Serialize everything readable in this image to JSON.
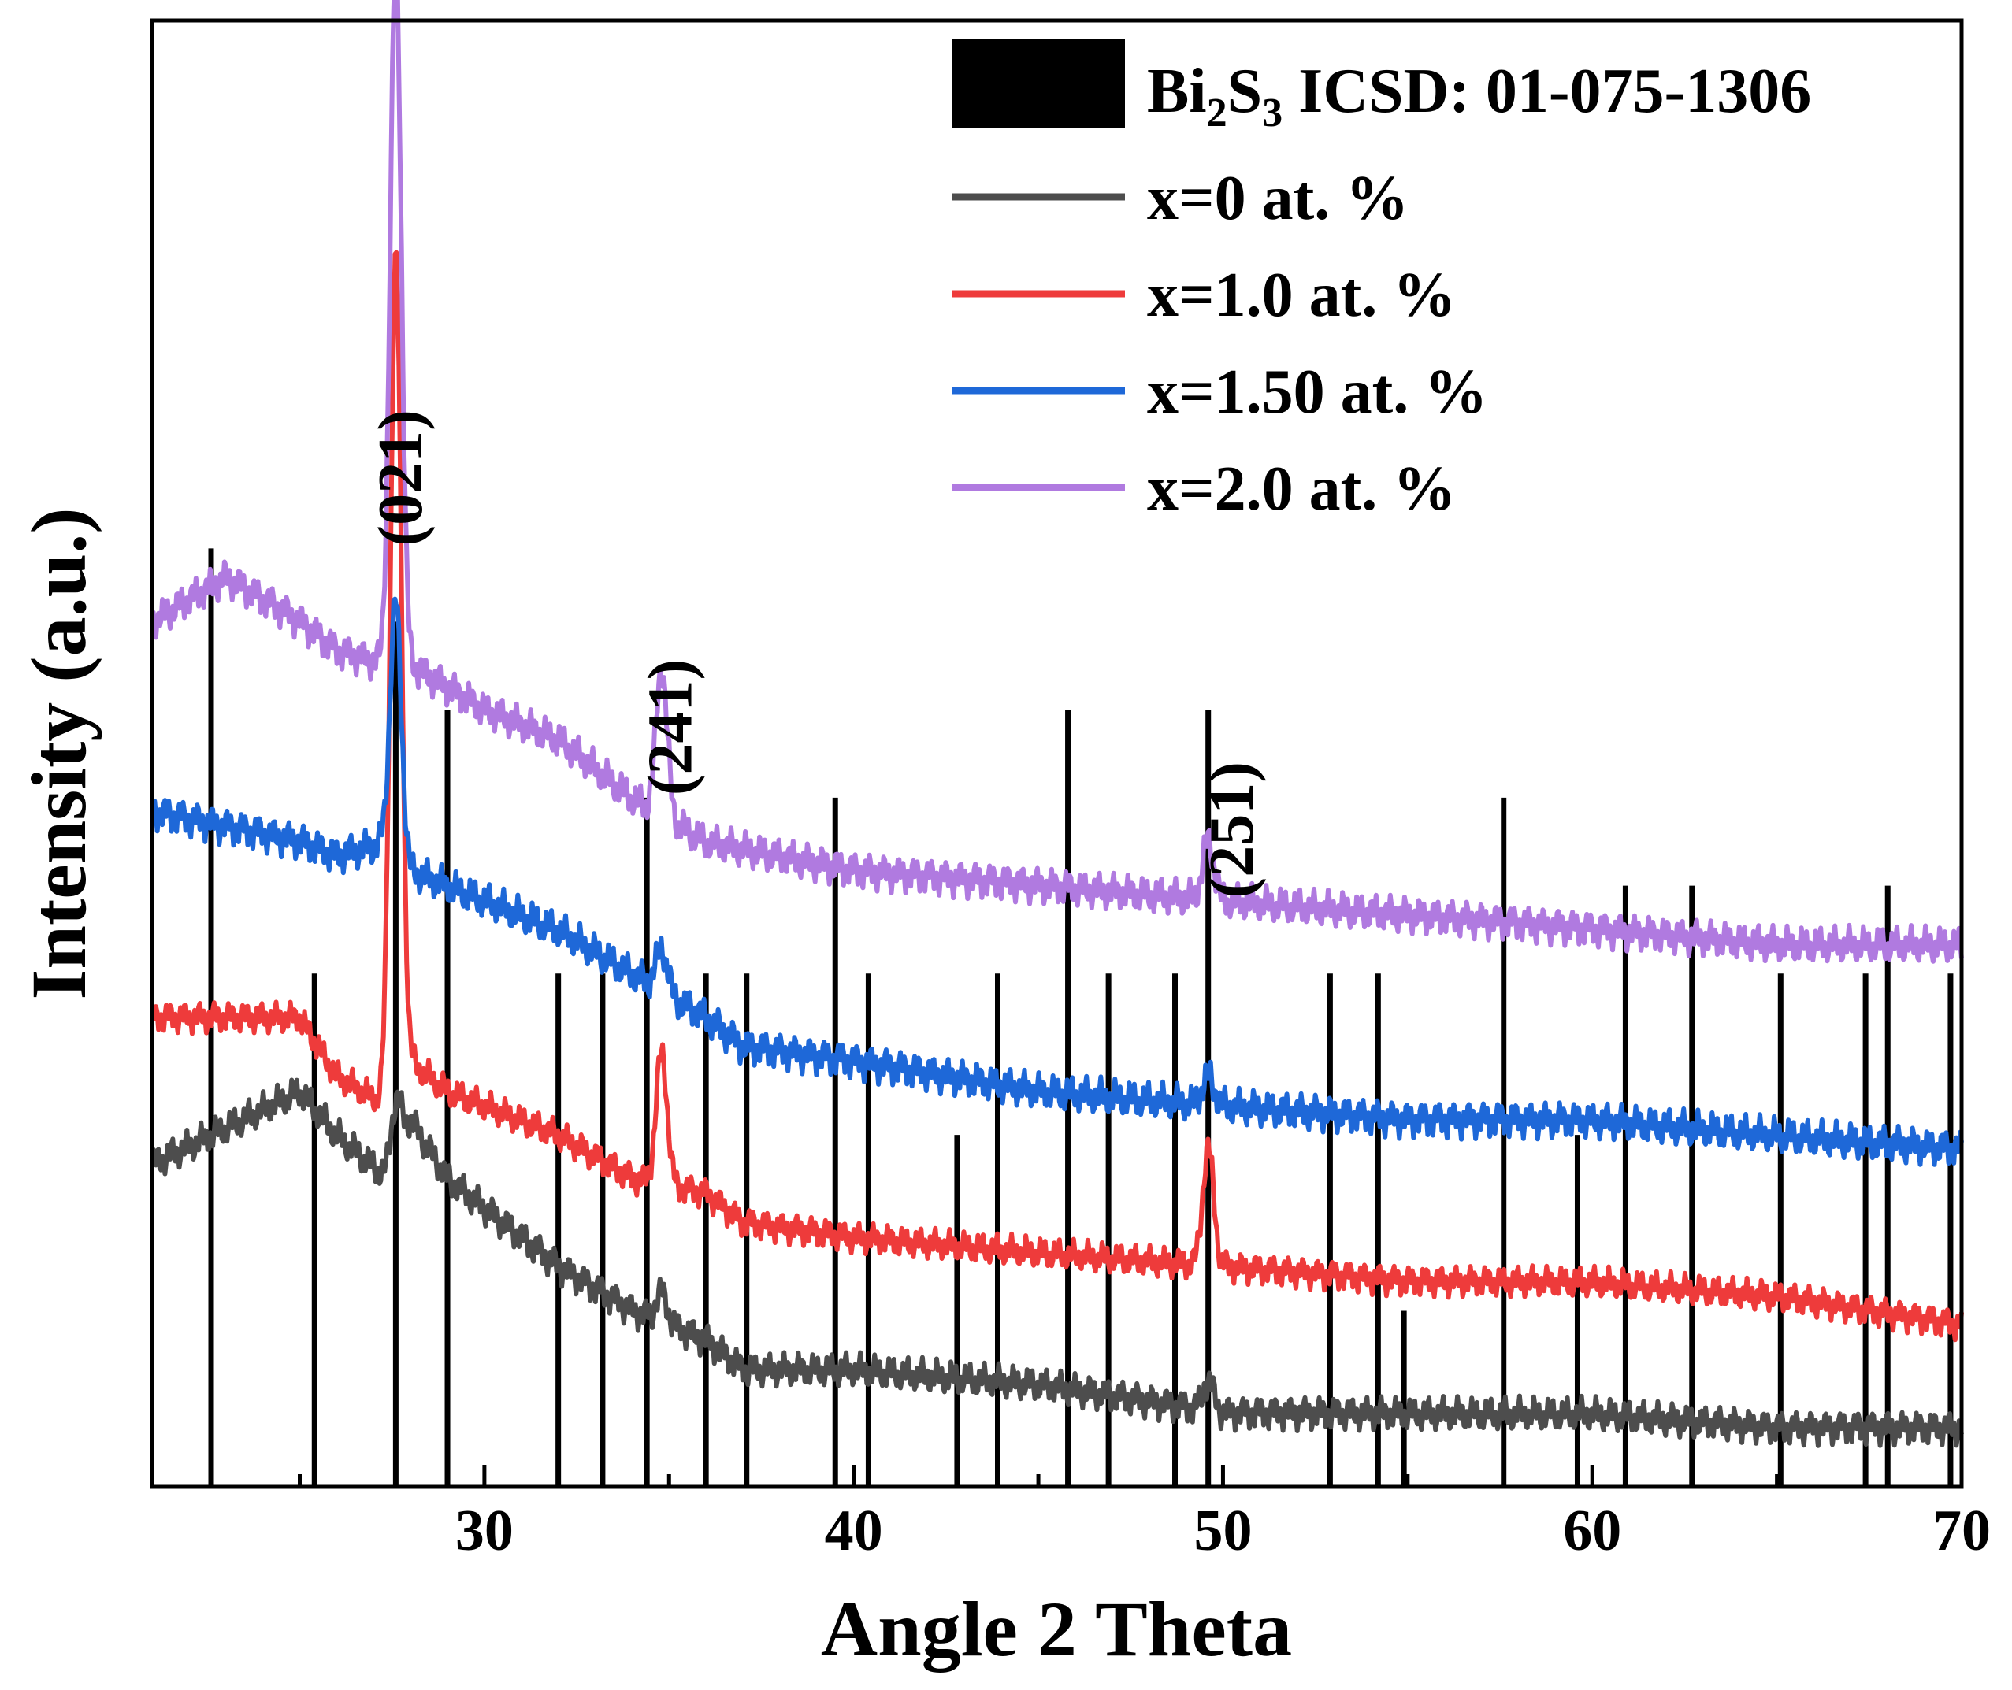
{
  "chart_data": {
    "type": "line",
    "xlabel": "Angle 2 Theta",
    "ylabel": "Intensity (a.u.)",
    "xlim": [
      21,
      70
    ],
    "ylim": [
      0,
      100
    ],
    "xticks": [
      30,
      40,
      50,
      60,
      70
    ],
    "xtick_labels": [
      "30",
      "40",
      "50",
      "60",
      "70"
    ],
    "grid": false,
    "legend_position": "top-right",
    "reference": {
      "name_parts": [
        "Bi",
        "2",
        "S",
        "3",
        " ICSD: 01-075-1306"
      ],
      "color": "#000000",
      "peaks_2theta": [
        22.6,
        25.4,
        27.6,
        29.0,
        32.0,
        33.2,
        34.4,
        36.0,
        37.1,
        39.5,
        40.4,
        42.8,
        43.9,
        45.8,
        46.9,
        48.7,
        49.6,
        52.9,
        54.2,
        54.9,
        57.6,
        59.6,
        60.9,
        62.7,
        65.1,
        67.4,
        68.0,
        69.7
      ],
      "peak_heights": [
        64,
        35,
        59,
        53,
        35,
        35,
        47,
        35,
        35,
        47,
        35,
        24,
        35,
        53,
        35,
        35,
        53,
        35,
        35,
        12,
        47,
        24,
        41,
        41,
        35,
        35,
        41,
        35
      ]
    },
    "series": [
      {
        "name": "x=0 at. %",
        "color": "#4d4d4d",
        "baseline": [
          [
            21,
            22
          ],
          [
            25,
            27
          ],
          [
            26,
            24
          ],
          [
            27.4,
            21
          ],
          [
            28,
            25
          ],
          [
            29,
            21
          ],
          [
            32,
            15
          ],
          [
            34,
            12
          ],
          [
            36,
            10
          ],
          [
            37,
            8
          ],
          [
            40,
            8
          ],
          [
            45,
            7
          ],
          [
            50,
            5
          ],
          [
            55,
            5
          ],
          [
            60,
            5
          ],
          [
            65,
            4
          ],
          [
            70,
            4
          ]
        ],
        "peaks": [
          [
            27.6,
            0.15,
            4
          ],
          [
            34.8,
            0.15,
            2
          ],
          [
            49.6,
            0.15,
            2
          ]
        ],
        "noise": 1.2
      },
      {
        "name": "x=1.0 at. %",
        "color": "#ee3b3b",
        "baseline": [
          [
            21,
            32
          ],
          [
            25,
            32
          ],
          [
            26,
            28
          ],
          [
            27.4,
            26
          ],
          [
            28,
            29
          ],
          [
            29,
            27
          ],
          [
            32,
            24
          ],
          [
            34,
            21
          ],
          [
            36,
            20
          ],
          [
            37,
            18
          ],
          [
            40,
            17
          ],
          [
            45,
            16
          ],
          [
            50,
            15
          ],
          [
            55,
            14
          ],
          [
            60,
            14
          ],
          [
            65,
            13
          ],
          [
            70,
            11
          ]
        ],
        "peaks": [
          [
            27.6,
            0.15,
            57
          ],
          [
            34.8,
            0.15,
            9
          ],
          [
            49.6,
            0.15,
            8
          ]
        ],
        "noise": 1.1
      },
      {
        "name": "x=1.50 at. %",
        "color": "#1e68d8",
        "baseline": [
          [
            21,
            46
          ],
          [
            25,
            44
          ],
          [
            26,
            43
          ],
          [
            27.4,
            44
          ],
          [
            28,
            42
          ],
          [
            29,
            41
          ],
          [
            32,
            38
          ],
          [
            34,
            35
          ],
          [
            36,
            32
          ],
          [
            37,
            30
          ],
          [
            40,
            29
          ],
          [
            45,
            27
          ],
          [
            50,
            26
          ],
          [
            55,
            25
          ],
          [
            60,
            25
          ],
          [
            65,
            24
          ],
          [
            70,
            23
          ]
        ],
        "peaks": [
          [
            27.6,
            0.15,
            17
          ],
          [
            34.8,
            0.15,
            3
          ],
          [
            49.6,
            0.15,
            2
          ]
        ],
        "noise": 1.3
      },
      {
        "name": "x=2.0 at. %",
        "color": "#b07ae0",
        "baseline": [
          [
            21,
            59
          ],
          [
            23,
            62
          ],
          [
            25,
            59
          ],
          [
            26,
            57
          ],
          [
            27.4,
            56
          ],
          [
            28,
            56
          ],
          [
            30,
            53
          ],
          [
            32,
            51
          ],
          [
            34,
            47
          ],
          [
            36,
            44
          ],
          [
            38,
            43
          ],
          [
            40,
            42
          ],
          [
            45,
            41
          ],
          [
            50,
            40
          ],
          [
            55,
            39
          ],
          [
            60,
            38
          ],
          [
            65,
            37
          ],
          [
            70,
            37
          ]
        ],
        "peaks": [
          [
            27.6,
            0.15,
            48
          ],
          [
            34.8,
            0.15,
            10
          ],
          [
            49.6,
            0.15,
            4
          ]
        ],
        "noise": 1.3
      }
    ],
    "annotations": [
      {
        "text": "(021)",
        "x": 28.3,
        "y": 68.8
      },
      {
        "text": "(241)",
        "x": 35.6,
        "y": 51.8
      },
      {
        "text": "(251)",
        "x": 50.8,
        "y": 44.8
      }
    ]
  }
}
